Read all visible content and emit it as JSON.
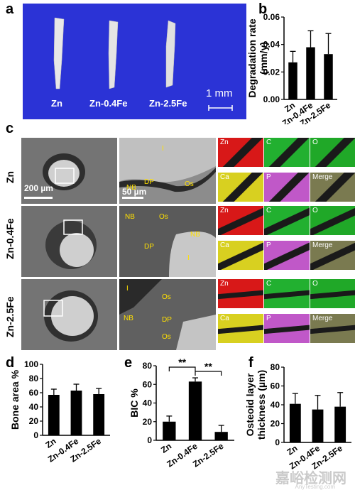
{
  "panels": {
    "a": "a",
    "b": "b",
    "c": "c",
    "d": "d",
    "e": "e",
    "f": "f"
  },
  "panel_a": {
    "labels": [
      "Zn",
      "Zn-0.4Fe",
      "Zn-2.5Fe"
    ],
    "scale_bar": "1 mm",
    "background_color": "#2b33d6"
  },
  "panel_c": {
    "rows": [
      "Zn",
      "Zn-0.4Fe",
      "Zn-2.5Fe"
    ],
    "scale_bar_low": "200 µm",
    "scale_bar_high": "50 µm",
    "zoom_labels": {
      "row1": [
        "I",
        "DP",
        "NB",
        "Os"
      ],
      "row2": [
        "NB",
        "Os",
        "NB",
        "DP",
        "I"
      ],
      "row3": [
        "I",
        "Os",
        "NB",
        "DP",
        "Os"
      ]
    },
    "map_labels": [
      "Zn",
      "C",
      "O",
      "Ca",
      "P",
      "Merge"
    ],
    "map_colors": {
      "Zn": "#d81818",
      "C": "#22b030",
      "O": "#20a828",
      "Ca": "#d8d020",
      "P": "#c058c8",
      "Merge": "#7a7a50"
    }
  },
  "chart_data": [
    {
      "id": "b",
      "type": "bar",
      "categories": [
        "Zn",
        "Zn-0.4Fe",
        "Zn-2.5Fe"
      ],
      "values": [
        0.027,
        0.038,
        0.033
      ],
      "errors": [
        0.008,
        0.012,
        0.015
      ],
      "ylabel": "Degradation rate (mm/y)",
      "ylim": [
        0,
        0.06
      ],
      "yticks": [
        "0.00",
        "0.02",
        "0.04",
        "0.06"
      ]
    },
    {
      "id": "d",
      "type": "bar",
      "categories": [
        "Zn",
        "Zn-0.4Fe",
        "Zn-2.5Fe"
      ],
      "values": [
        57,
        63,
        58
      ],
      "errors": [
        8,
        9,
        8
      ],
      "ylabel": "Bone area %",
      "ylim": [
        0,
        100
      ],
      "yticks": [
        "0",
        "20",
        "40",
        "60",
        "80",
        "100"
      ]
    },
    {
      "id": "e",
      "type": "bar",
      "categories": [
        "Zn",
        "Zn-0.4Fe",
        "Zn-2.5Fe"
      ],
      "values": [
        20,
        63,
        9
      ],
      "errors": [
        6,
        4,
        7
      ],
      "ylabel": "BIC %",
      "ylim": [
        0,
        80
      ],
      "yticks": [
        "0",
        "20",
        "40",
        "60",
        "80"
      ],
      "annotations": [
        "**",
        "**"
      ]
    },
    {
      "id": "f",
      "type": "bar",
      "categories": [
        "Zn",
        "Zn-0.4Fe",
        "Zn-2.5Fe"
      ],
      "values": [
        41,
        35,
        38
      ],
      "errors": [
        11,
        15,
        15
      ],
      "ylabel": "Osteoid layer thickness (µm)",
      "ylim": [
        0,
        80
      ],
      "yticks": [
        "0",
        "20",
        "40",
        "60",
        "80"
      ]
    }
  ],
  "watermark": {
    "text": "嘉峪检测网",
    "sub": "AnyTesting.com"
  }
}
